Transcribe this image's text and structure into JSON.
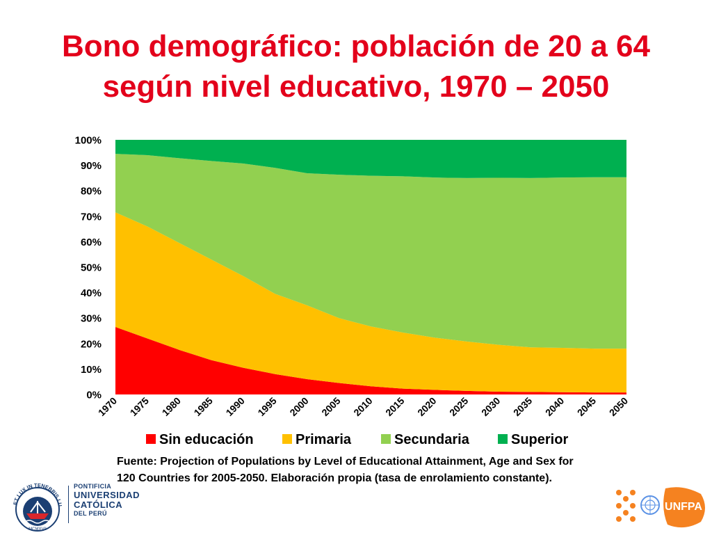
{
  "slide": {
    "title_line1": "Bono demográfico: población de 20 a 64",
    "title_line2": "según nivel educativo, 1970 – 2050",
    "source_line1": "Fuente: Projection of Populations by Level of Educational Attainment, Age and Sex for",
    "source_line2": "120 Countries for 2005-2050.  Elaboración propia (tasa de enrolamiento constante).",
    "accent_color": "#e3001b"
  },
  "logos": {
    "pucp_line1": "PONTIFICIA",
    "pucp_line2": "UNIVERSIDAD",
    "pucp_line3": "CATÓLICA",
    "pucp_line4": "DEL PERÚ",
    "pucp_motto": "ET LUX IN TENEBRIS LUCET",
    "pucp_year": "MCMXVII",
    "unfpa_label": "UNFPA",
    "pucp_color": "#1b3f73",
    "unfpa_color": "#f58220"
  },
  "chart_data": {
    "type": "area",
    "stacked": true,
    "percent": true,
    "x": [
      "1970",
      "1975",
      "1980",
      "1985",
      "1990",
      "1995",
      "2000",
      "2005",
      "2010",
      "2015",
      "2020",
      "2025",
      "2030",
      "2035",
      "2040",
      "2045",
      "2050"
    ],
    "ylim": [
      0,
      100
    ],
    "yticks": [
      "0%",
      "10%",
      "20%",
      "30%",
      "40%",
      "50%",
      "60%",
      "70%",
      "80%",
      "90%",
      "100%"
    ],
    "legend_position": "bottom",
    "series": [
      {
        "name": "Sin educación",
        "color": "#ff0000",
        "values": [
          26.5,
          22,
          17.5,
          13.5,
          10.5,
          8,
          6,
          4.5,
          3.2,
          2.3,
          1.8,
          1.4,
          1.1,
          1.0,
          0.9,
          0.8,
          0.8
        ]
      },
      {
        "name": "Primaria",
        "color": "#ffc000",
        "values": [
          45,
          44,
          42,
          39.5,
          36,
          31.5,
          29,
          25.5,
          23.5,
          22,
          20.5,
          19.4,
          18.4,
          17.5,
          17.4,
          17.2,
          17.2
        ]
      },
      {
        "name": "Secundaria",
        "color": "#92d050",
        "values": [
          23,
          28,
          33.3,
          38.7,
          44.2,
          49.5,
          51.9,
          56.3,
          59.2,
          61.4,
          62.9,
          64.2,
          65.6,
          66.5,
          66.9,
          67.3,
          67.3
        ]
      },
      {
        "name": "Superior",
        "color": "#00b050",
        "values": [
          5.5,
          6,
          7.2,
          8.3,
          9.3,
          11,
          13.1,
          13.7,
          14.1,
          14.3,
          14.8,
          15,
          14.9,
          15,
          14.8,
          14.7,
          14.7
        ]
      }
    ]
  }
}
